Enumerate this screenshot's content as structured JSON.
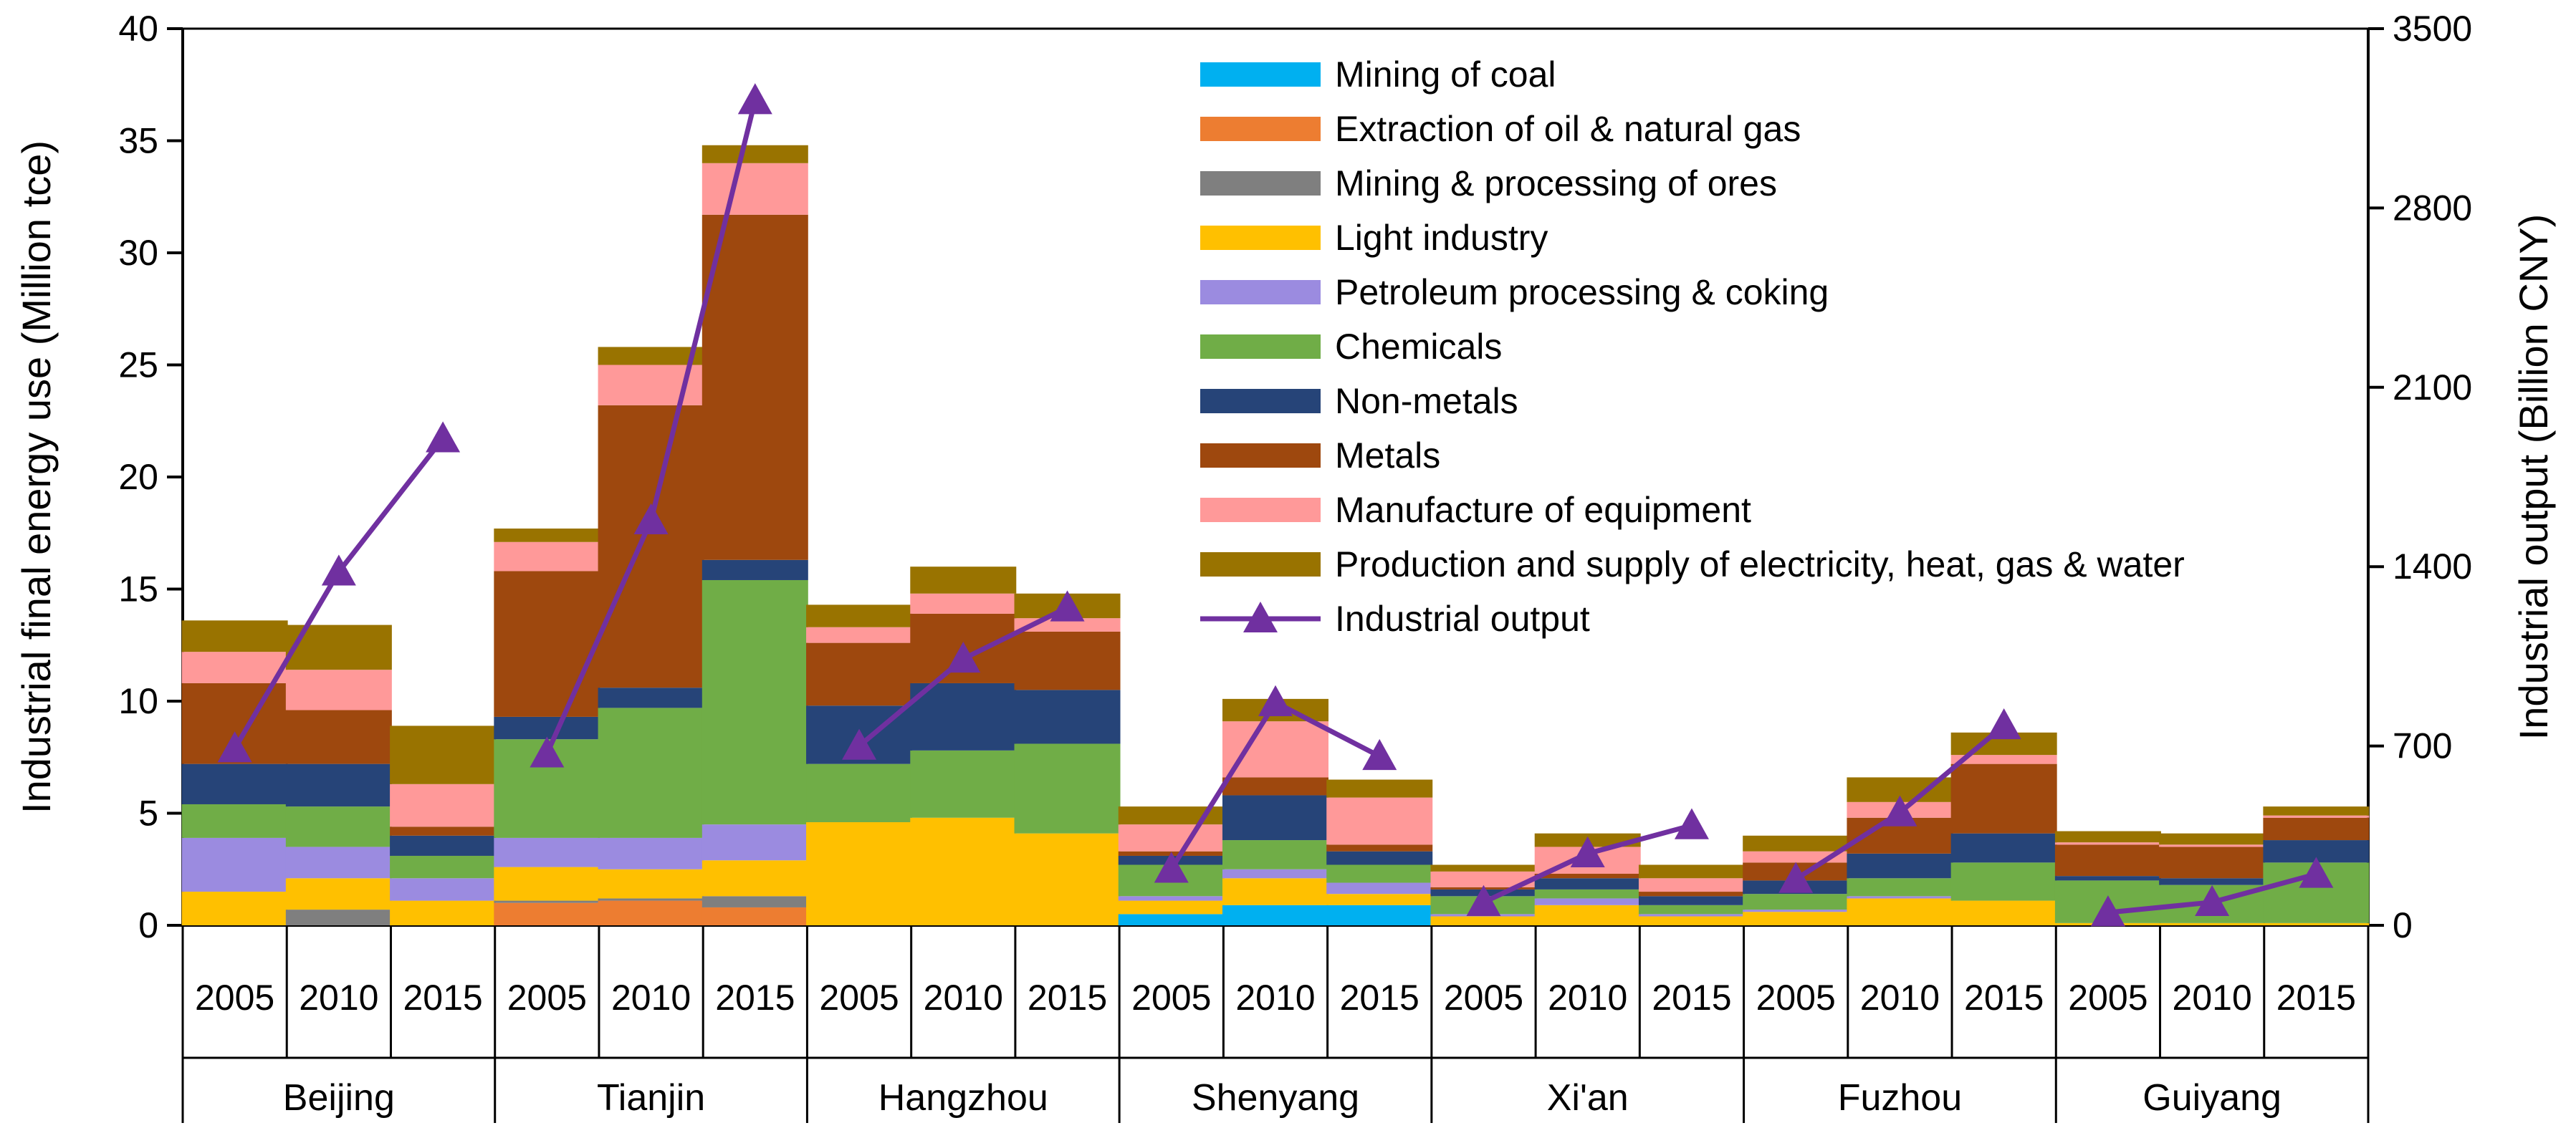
{
  "chart_data": {
    "type": "stacked-bar-with-line",
    "ylabel_left": "Industrial final  energy use (Million tce)",
    "ylabel_right": "Industrial output (Billion CNY)",
    "ylim_left": [
      0,
      40
    ],
    "yticks_left": [
      "0",
      "5",
      "10",
      "15",
      "20",
      "25",
      "30",
      "35",
      "40"
    ],
    "ylim_right": [
      0,
      3500
    ],
    "yticks_right": [
      "0",
      "700",
      "1400",
      "2100",
      "2800",
      "3500"
    ],
    "cities": [
      "Beijing",
      "Tianjin",
      "Hangzhou",
      "Shenyang",
      "Xi'an",
      "Fuzhou",
      "Guiyang"
    ],
    "years": [
      "2005",
      "2010",
      "2015"
    ],
    "series": [
      {
        "name": "Mining of coal",
        "color": "#00B0F0",
        "values": [
          0,
          0,
          0,
          0,
          0,
          0,
          0,
          0,
          0,
          0.5,
          0.9,
          0.9,
          0,
          0,
          0,
          0,
          0,
          0,
          0,
          0,
          0
        ]
      },
      {
        "name": "Extraction of oil & natural gas",
        "color": "#ED7D31",
        "values": [
          0,
          0,
          0,
          1.0,
          1.1,
          0.8,
          0,
          0,
          0,
          0,
          0,
          0,
          0,
          0,
          0,
          0,
          0,
          0,
          0,
          0,
          0
        ]
      },
      {
        "name": "Mining & processing of ores",
        "color": "#7F7F7F",
        "values": [
          0,
          0.7,
          0,
          0.1,
          0.1,
          0.5,
          0,
          0,
          0,
          0,
          0,
          0,
          0,
          0,
          0,
          0,
          0,
          0,
          0,
          0,
          0
        ]
      },
      {
        "name": "Light industry",
        "color": "#FFC000",
        "values": [
          1.5,
          1.4,
          1.1,
          1.5,
          1.3,
          1.6,
          4.6,
          4.8,
          4.1,
          0.6,
          1.2,
          0.5,
          0.4,
          0.9,
          0.4,
          0.6,
          1.2,
          1.1,
          0.1,
          0.1,
          0.1
        ]
      },
      {
        "name": "Petroleum processing & coking",
        "color": "#9B8BE0",
        "values": [
          2.4,
          1.4,
          1.0,
          1.3,
          1.4,
          1.6,
          0,
          0,
          0,
          0.2,
          0.4,
          0.5,
          0.1,
          0.3,
          0.1,
          0.1,
          0.1,
          0,
          0,
          0,
          0
        ]
      },
      {
        "name": "Chemicals",
        "color": "#70AD47",
        "values": [
          1.5,
          1.8,
          1.0,
          4.4,
          5.8,
          10.9,
          2.6,
          3.0,
          4.0,
          1.4,
          1.3,
          0.8,
          0.8,
          0.4,
          0.4,
          0.7,
          0.8,
          1.7,
          1.9,
          1.7,
          2.7
        ]
      },
      {
        "name": "Non-metals",
        "color": "#264478",
        "values": [
          1.8,
          1.9,
          0.9,
          1.0,
          0.9,
          0.9,
          2.6,
          3.0,
          2.4,
          0.4,
          2.0,
          0.6,
          0.3,
          0.5,
          0.4,
          0.6,
          1.1,
          1.3,
          0.2,
          0.3,
          1.0
        ]
      },
      {
        "name": "Metals",
        "color": "#9E480E",
        "values": [
          3.6,
          2.4,
          0.4,
          6.5,
          12.6,
          15.4,
          2.8,
          3.1,
          2.6,
          0.2,
          0.8,
          0.3,
          0.1,
          0.2,
          0.2,
          0.8,
          1.6,
          3.1,
          1.4,
          1.4,
          1.0
        ]
      },
      {
        "name": "Manufacture of equipment",
        "color": "#FF9999",
        "values": [
          1.4,
          1.8,
          1.9,
          1.3,
          1.8,
          2.3,
          0.7,
          0.9,
          0.6,
          1.2,
          2.5,
          2.1,
          0.7,
          1.2,
          0.6,
          0.5,
          0.7,
          0.4,
          0.1,
          0.1,
          0.1
        ]
      },
      {
        "name": "Production and supply of electricity, heat, gas & water",
        "color": "#997300",
        "values": [
          1.4,
          2.0,
          2.6,
          0.6,
          0.8,
          0.8,
          1.0,
          1.2,
          1.1,
          0.8,
          1.0,
          0.8,
          0.3,
          0.6,
          0.6,
          0.7,
          1.1,
          1.0,
          0.5,
          0.5,
          0.4
        ]
      }
    ],
    "line": {
      "name": "Industrial output",
      "color": "#7030A0",
      "values": [
        690,
        1380,
        1900,
        670,
        1580,
        3220,
        700,
        1040,
        1240,
        220,
        870,
        660,
        90,
        280,
        390,
        180,
        440,
        780,
        50,
        90,
        200
      ]
    },
    "legend_position": "top-right"
  }
}
